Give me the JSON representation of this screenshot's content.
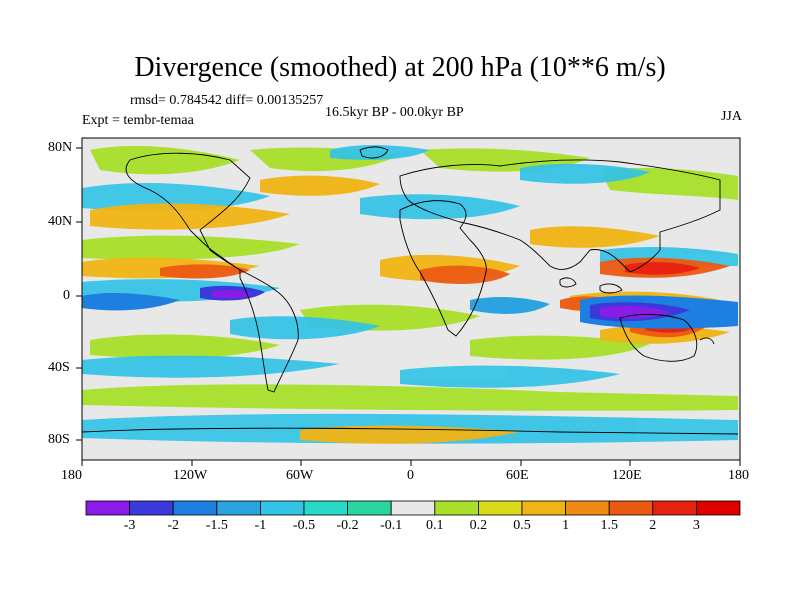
{
  "title": "Divergence (smoothed) at 200 hPa (10**6 m/s)",
  "stats": {
    "rmsd_label": "rmsd= 0.784542 diff= 0.00135257"
  },
  "experiment": "Expt = tembr-temaa",
  "period": "16.5kyr BP - 00.0kyr BP",
  "season": "JJA",
  "axes": {
    "x_ticks": [
      "180",
      "120W",
      "60W",
      "0",
      "60E",
      "120E",
      "180"
    ],
    "y_ticks": [
      "80N",
      "40N",
      "0",
      "40S",
      "80S"
    ]
  },
  "colorbar": {
    "labels": [
      "-3",
      "-2",
      "-1.5",
      "-1",
      "-0.5",
      "-0.2",
      "-0.1",
      "0.1",
      "0.2",
      "0.5",
      "1",
      "1.5",
      "2",
      "3"
    ],
    "colors": [
      "#8a1ce8",
      "#3a3adb",
      "#1d7fe0",
      "#2aa3e0",
      "#33c3e6",
      "#26d9c8",
      "#2ad6a0",
      "#e8e8e8",
      "#a8e02a",
      "#d9d91a",
      "#f0b414",
      "#f08a14",
      "#ec5a12",
      "#e82010",
      "#e00000"
    ]
  },
  "map_features": {
    "strong_negative": "Indonesia / Maritime Continent",
    "strong_positive": "Western Pacific 10N, Northern Australia"
  }
}
